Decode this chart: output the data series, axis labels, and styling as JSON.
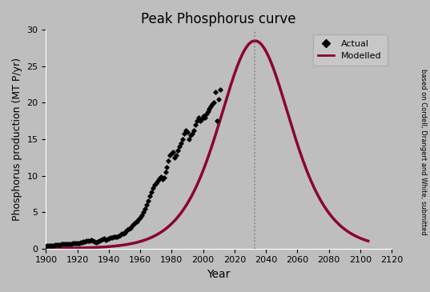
{
  "title": "Peak Phosphorus curve",
  "xlabel": "Year",
  "ylabel": "Phosphorus production (MT P/yr)",
  "background_color": "#bebebe",
  "curve_color": "#8b0038",
  "dotted_line_year": 2033,
  "ylim": [
    0,
    30
  ],
  "xlim": [
    1900,
    2120
  ],
  "xticks": [
    1900,
    1920,
    1940,
    1960,
    1980,
    2000,
    2020,
    2040,
    2060,
    2080,
    2100,
    2120
  ],
  "yticks": [
    0,
    5,
    10,
    15,
    20,
    25,
    30
  ],
  "hubbert_peak_year": 2033,
  "hubbert_peak_value": 28.5,
  "hubbert_k": 0.065,
  "actual_data": [
    [
      1900,
      0.35
    ],
    [
      1901,
      0.36
    ],
    [
      1902,
      0.38
    ],
    [
      1903,
      0.4
    ],
    [
      1904,
      0.42
    ],
    [
      1905,
      0.44
    ],
    [
      1906,
      0.47
    ],
    [
      1907,
      0.5
    ],
    [
      1908,
      0.52
    ],
    [
      1909,
      0.55
    ],
    [
      1910,
      0.58
    ],
    [
      1911,
      0.6
    ],
    [
      1912,
      0.64
    ],
    [
      1913,
      0.67
    ],
    [
      1914,
      0.6
    ],
    [
      1915,
      0.62
    ],
    [
      1916,
      0.68
    ],
    [
      1917,
      0.72
    ],
    [
      1918,
      0.75
    ],
    [
      1919,
      0.72
    ],
    [
      1920,
      0.78
    ],
    [
      1921,
      0.7
    ],
    [
      1922,
      0.8
    ],
    [
      1923,
      0.88
    ],
    [
      1924,
      0.92
    ],
    [
      1925,
      0.98
    ],
    [
      1926,
      1.02
    ],
    [
      1927,
      1.08
    ],
    [
      1928,
      1.12
    ],
    [
      1929,
      1.18
    ],
    [
      1930,
      1.1
    ],
    [
      1931,
      1.0
    ],
    [
      1932,
      0.9
    ],
    [
      1933,
      0.95
    ],
    [
      1934,
      1.05
    ],
    [
      1935,
      1.15
    ],
    [
      1936,
      1.25
    ],
    [
      1937,
      1.35
    ],
    [
      1938,
      1.2
    ],
    [
      1939,
      1.3
    ],
    [
      1940,
      1.4
    ],
    [
      1941,
      1.5
    ],
    [
      1942,
      1.55
    ],
    [
      1943,
      1.6
    ],
    [
      1944,
      1.65
    ],
    [
      1945,
      1.6
    ],
    [
      1946,
      1.7
    ],
    [
      1947,
      1.85
    ],
    [
      1948,
      2.0
    ],
    [
      1949,
      2.1
    ],
    [
      1950,
      2.2
    ],
    [
      1951,
      2.4
    ],
    [
      1952,
      2.55
    ],
    [
      1953,
      2.7
    ],
    [
      1954,
      2.8
    ],
    [
      1955,
      3.1
    ],
    [
      1956,
      3.4
    ],
    [
      1957,
      3.6
    ],
    [
      1958,
      3.7
    ],
    [
      1959,
      4.0
    ],
    [
      1960,
      4.3
    ],
    [
      1961,
      4.6
    ],
    [
      1962,
      5.0
    ],
    [
      1963,
      5.5
    ],
    [
      1964,
      6.0
    ],
    [
      1965,
      6.6
    ],
    [
      1966,
      7.2
    ],
    [
      1967,
      7.8
    ],
    [
      1968,
      8.3
    ],
    [
      1969,
      8.7
    ],
    [
      1970,
      9.0
    ],
    [
      1971,
      9.3
    ],
    [
      1972,
      9.6
    ],
    [
      1973,
      9.8
    ],
    [
      1974,
      9.5
    ],
    [
      1975,
      9.7
    ],
    [
      1976,
      10.5
    ],
    [
      1977,
      11.2
    ],
    [
      1978,
      12.0
    ],
    [
      1979,
      12.8
    ],
    [
      1980,
      13.0
    ],
    [
      1981,
      13.2
    ],
    [
      1982,
      12.5
    ],
    [
      1983,
      12.8
    ],
    [
      1984,
      13.5
    ],
    [
      1985,
      14.0
    ],
    [
      1986,
      14.5
    ],
    [
      1987,
      15.0
    ],
    [
      1988,
      15.8
    ],
    [
      1989,
      16.2
    ],
    [
      1990,
      16.0
    ],
    [
      1991,
      15.0
    ],
    [
      1992,
      15.5
    ],
    [
      1993,
      15.8
    ],
    [
      1994,
      16.2
    ],
    [
      1995,
      17.0
    ],
    [
      1996,
      17.5
    ],
    [
      1997,
      18.0
    ],
    [
      1998,
      17.5
    ],
    [
      1999,
      17.8
    ],
    [
      2000,
      18.2
    ],
    [
      2001,
      18.0
    ],
    [
      2002,
      18.5
    ],
    [
      2003,
      18.8
    ],
    [
      2004,
      19.2
    ],
    [
      2005,
      19.5
    ],
    [
      2006,
      19.8
    ],
    [
      2007,
      20.0
    ],
    [
      2008,
      21.5
    ],
    [
      2009,
      17.5
    ],
    [
      2010,
      20.5
    ],
    [
      2011,
      21.8
    ]
  ],
  "sidebar_text": "based on Cordell, Drangert and White, submitted",
  "legend_actual": "Actual",
  "legend_modelled": "Modelled"
}
